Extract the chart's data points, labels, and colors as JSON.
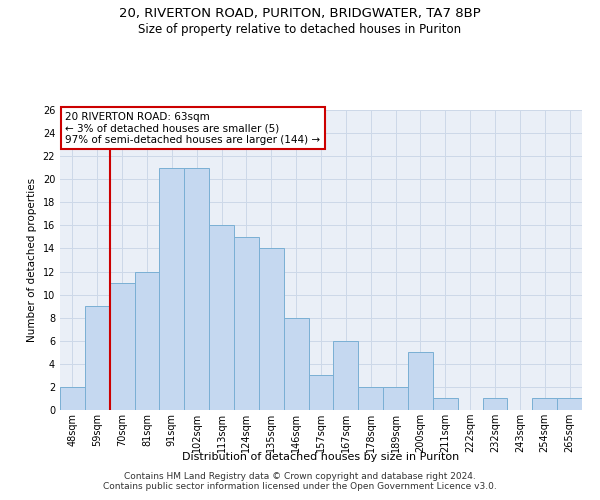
{
  "title1": "20, RIVERTON ROAD, PURITON, BRIDGWATER, TA7 8BP",
  "title2": "Size of property relative to detached houses in Puriton",
  "xlabel": "Distribution of detached houses by size in Puriton",
  "ylabel": "Number of detached properties",
  "categories": [
    "48sqm",
    "59sqm",
    "70sqm",
    "81sqm",
    "91sqm",
    "102sqm",
    "113sqm",
    "124sqm",
    "135sqm",
    "146sqm",
    "157sqm",
    "167sqm",
    "178sqm",
    "189sqm",
    "200sqm",
    "211sqm",
    "222sqm",
    "232sqm",
    "243sqm",
    "254sqm",
    "265sqm"
  ],
  "values": [
    2,
    9,
    11,
    12,
    21,
    21,
    16,
    15,
    14,
    8,
    3,
    6,
    2,
    2,
    5,
    1,
    0,
    1,
    0,
    1,
    1
  ],
  "bar_color": "#c5d8f0",
  "bar_edge_color": "#7aafd4",
  "vline_x": 1.5,
  "vline_color": "#cc0000",
  "annotation_text": "20 RIVERTON ROAD: 63sqm\n← 3% of detached houses are smaller (5)\n97% of semi-detached houses are larger (144) →",
  "annotation_box_color": "#ffffff",
  "annotation_box_edge": "#cc0000",
  "ylim": [
    0,
    26
  ],
  "yticks": [
    0,
    2,
    4,
    6,
    8,
    10,
    12,
    14,
    16,
    18,
    20,
    22,
    24,
    26
  ],
  "grid_color": "#cdd8e8",
  "bg_color": "#eaeff7",
  "footer1": "Contains HM Land Registry data © Crown copyright and database right 2024.",
  "footer2": "Contains public sector information licensed under the Open Government Licence v3.0.",
  "title1_fontsize": 9.5,
  "title2_fontsize": 8.5,
  "xlabel_fontsize": 8,
  "ylabel_fontsize": 7.5,
  "tick_fontsize": 7,
  "annotation_fontsize": 7.5,
  "footer_fontsize": 6.5
}
